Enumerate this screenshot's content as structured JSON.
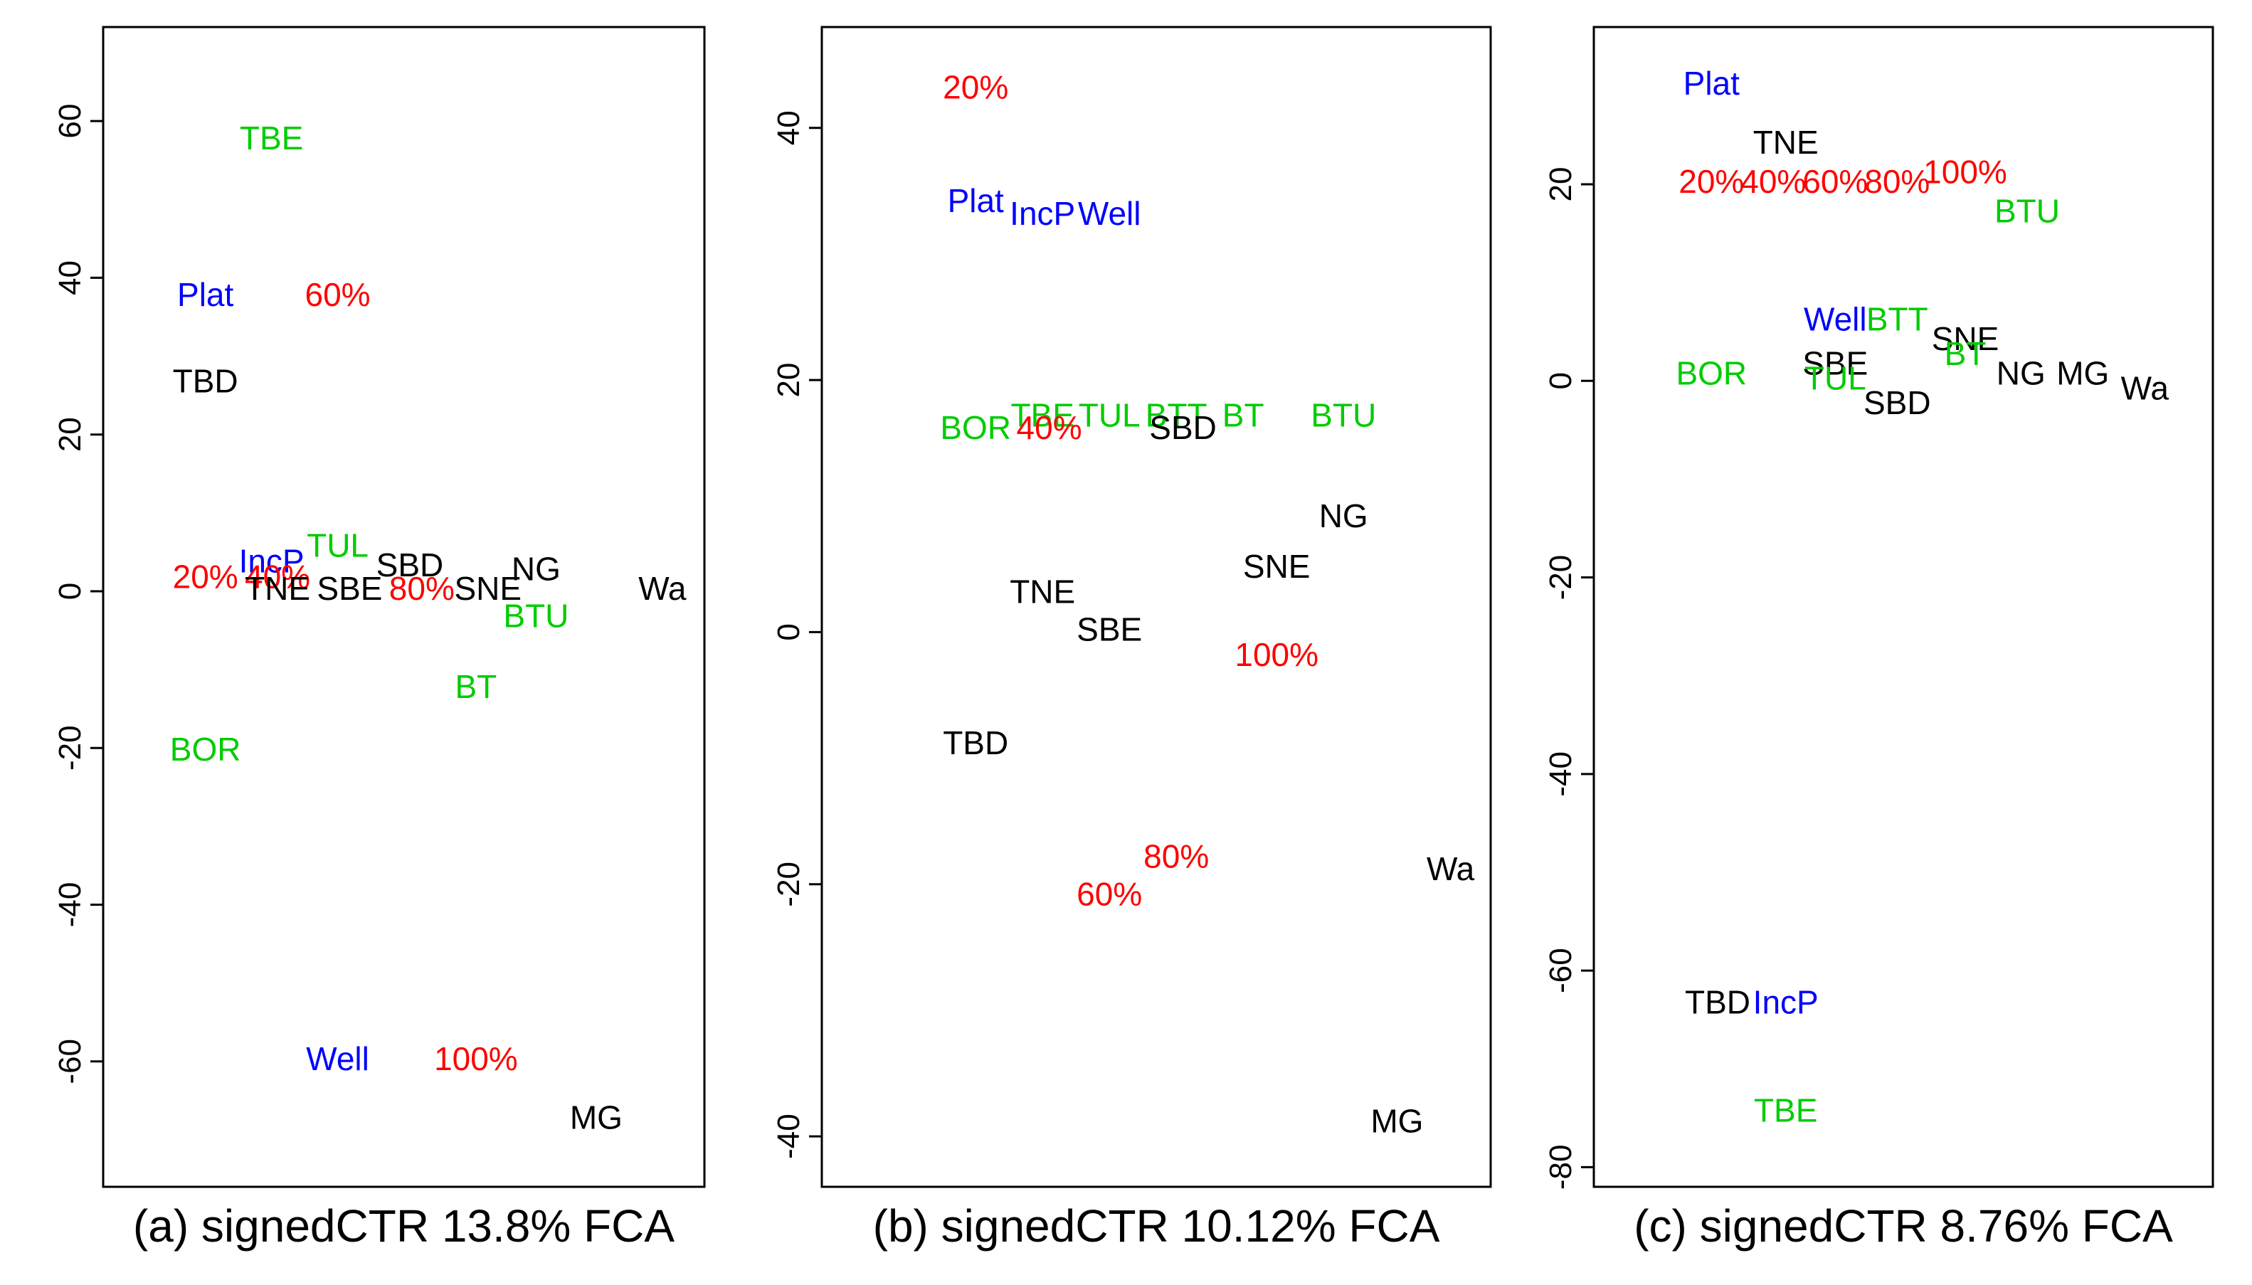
{
  "colors": {
    "red": "#ff0000",
    "blue": "#0000ff",
    "green": "#00cc00",
    "black": "#000000"
  },
  "chart_data": [
    {
      "type": "scatter",
      "title": "(a) signedCTR 13.8% FCA",
      "ylim": [
        -76,
        72
      ],
      "y_ticks": [
        60,
        40,
        20,
        0,
        -20,
        -40,
        -60
      ],
      "y_tick_labels": [
        "60",
        "40",
        "20",
        "0",
        "-20",
        "-40",
        "-60"
      ],
      "xlim": [
        0,
        10
      ],
      "points": [
        {
          "label": "TBE",
          "x": 2.8,
          "y": 57.5,
          "color": "green"
        },
        {
          "label": "Plat",
          "x": 1.7,
          "y": 37.5,
          "color": "blue"
        },
        {
          "label": "60%",
          "x": 3.9,
          "y": 37.5,
          "color": "red"
        },
        {
          "label": "TBD",
          "x": 1.7,
          "y": 26.5,
          "color": "black"
        },
        {
          "label": "TUL",
          "x": 3.9,
          "y": 5.5,
          "color": "green"
        },
        {
          "label": "IncP",
          "x": 2.8,
          "y": 3.5,
          "color": "blue"
        },
        {
          "label": "SBD",
          "x": 5.1,
          "y": 3.0,
          "color": "black"
        },
        {
          "label": "NG",
          "x": 7.2,
          "y": 2.5,
          "color": "black"
        },
        {
          "label": "20%",
          "x": 1.7,
          "y": 1.5,
          "color": "red"
        },
        {
          "label": "40%",
          "x": 2.9,
          "y": 1.5,
          "color": "red"
        },
        {
          "label": "TNE",
          "x": 2.9,
          "y": 0.0,
          "color": "black"
        },
        {
          "label": "SBE",
          "x": 4.1,
          "y": 0.0,
          "color": "black"
        },
        {
          "label": "80%",
          "x": 5.3,
          "y": 0.0,
          "color": "red"
        },
        {
          "label": "SNE",
          "x": 6.4,
          "y": 0.0,
          "color": "black"
        },
        {
          "label": "Wa",
          "x": 9.3,
          "y": 0.0,
          "color": "black"
        },
        {
          "label": "BTU",
          "x": 7.2,
          "y": -3.5,
          "color": "green"
        },
        {
          "label": "BT",
          "x": 6.2,
          "y": -12.5,
          "color": "green"
        },
        {
          "label": "BOR",
          "x": 1.7,
          "y": -20.5,
          "color": "green"
        },
        {
          "label": "Well",
          "x": 3.9,
          "y": -60.0,
          "color": "blue"
        },
        {
          "label": "100%",
          "x": 6.2,
          "y": -60.0,
          "color": "red"
        },
        {
          "label": "MG",
          "x": 8.2,
          "y": -67.5,
          "color": "black"
        }
      ]
    },
    {
      "type": "scatter",
      "title": "(b) signedCTR 10.12% FCA",
      "ylim": [
        -44,
        48
      ],
      "y_ticks": [
        40,
        20,
        0,
        -20,
        -40
      ],
      "y_tick_labels": [
        "40",
        "20",
        "0",
        "-20",
        "-40"
      ],
      "xlim": [
        0,
        10
      ],
      "points": [
        {
          "label": "20%",
          "x": 2.3,
          "y": 43.0,
          "color": "red"
        },
        {
          "label": "Plat",
          "x": 2.3,
          "y": 34.0,
          "color": "blue"
        },
        {
          "label": "IncP",
          "x": 3.3,
          "y": 33.0,
          "color": "blue"
        },
        {
          "label": "Well",
          "x": 4.3,
          "y": 33.0,
          "color": "blue"
        },
        {
          "label": "TBE",
          "x": 3.3,
          "y": 17.0,
          "color": "green"
        },
        {
          "label": "TUL",
          "x": 4.3,
          "y": 17.0,
          "color": "green"
        },
        {
          "label": "BTT",
          "x": 5.3,
          "y": 17.0,
          "color": "green"
        },
        {
          "label": "BT",
          "x": 6.3,
          "y": 17.0,
          "color": "green"
        },
        {
          "label": "BTU",
          "x": 7.8,
          "y": 17.0,
          "color": "green"
        },
        {
          "label": "BOR",
          "x": 2.3,
          "y": 16.0,
          "color": "green"
        },
        {
          "label": "40%",
          "x": 3.4,
          "y": 16.0,
          "color": "red"
        },
        {
          "label": "SBD",
          "x": 5.4,
          "y": 16.0,
          "color": "black"
        },
        {
          "label": "NG",
          "x": 7.8,
          "y": 9.0,
          "color": "black"
        },
        {
          "label": "SNE",
          "x": 6.8,
          "y": 5.0,
          "color": "black"
        },
        {
          "label": "TNE",
          "x": 3.3,
          "y": 3.0,
          "color": "black"
        },
        {
          "label": "SBE",
          "x": 4.3,
          "y": 0.0,
          "color": "black"
        },
        {
          "label": "100%",
          "x": 6.8,
          "y": -2.0,
          "color": "red"
        },
        {
          "label": "TBD",
          "x": 2.3,
          "y": -9.0,
          "color": "black"
        },
        {
          "label": "80%",
          "x": 5.3,
          "y": -18.0,
          "color": "red"
        },
        {
          "label": "Wa",
          "x": 9.4,
          "y": -19.0,
          "color": "black"
        },
        {
          "label": "60%",
          "x": 4.3,
          "y": -21.0,
          "color": "red"
        },
        {
          "label": "MG",
          "x": 8.6,
          "y": -39.0,
          "color": "black"
        }
      ]
    },
    {
      "type": "scatter",
      "title": "(c) signedCTR 8.76% FCA",
      "ylim": [
        -82,
        36
      ],
      "y_ticks": [
        20,
        0,
        -20,
        -40,
        -60,
        -80
      ],
      "y_tick_labels": [
        "20",
        "0",
        "-20",
        "-40",
        "-60",
        "-80"
      ],
      "xlim": [
        0,
        10
      ],
      "points": [
        {
          "label": "Plat",
          "x": 1.9,
          "y": 30.0,
          "color": "blue"
        },
        {
          "label": "TNE",
          "x": 3.1,
          "y": 24.0,
          "color": "black"
        },
        {
          "label": "20%",
          "x": 1.9,
          "y": 20.0,
          "color": "red"
        },
        {
          "label": "40%",
          "x": 2.9,
          "y": 20.0,
          "color": "red"
        },
        {
          "label": "60%",
          "x": 3.9,
          "y": 20.0,
          "color": "red"
        },
        {
          "label": "80%",
          "x": 4.9,
          "y": 20.0,
          "color": "red"
        },
        {
          "label": "100%",
          "x": 6.0,
          "y": 21.0,
          "color": "red"
        },
        {
          "label": "BTU",
          "x": 7.0,
          "y": 17.0,
          "color": "green"
        },
        {
          "label": "Well",
          "x": 3.9,
          "y": 6.0,
          "color": "blue"
        },
        {
          "label": "BTT",
          "x": 4.9,
          "y": 6.0,
          "color": "green"
        },
        {
          "label": "SNE",
          "x": 6.0,
          "y": 4.0,
          "color": "black"
        },
        {
          "label": "BT",
          "x": 6.0,
          "y": 2.5,
          "color": "green"
        },
        {
          "label": "SBE",
          "x": 3.9,
          "y": 1.5,
          "color": "black"
        },
        {
          "label": "BOR",
          "x": 1.9,
          "y": 0.5,
          "color": "green"
        },
        {
          "label": "TUL",
          "x": 3.9,
          "y": 0.0,
          "color": "green"
        },
        {
          "label": "NG",
          "x": 6.9,
          "y": 0.5,
          "color": "black"
        },
        {
          "label": "MG",
          "x": 7.9,
          "y": 0.5,
          "color": "black"
        },
        {
          "label": "Wa",
          "x": 8.9,
          "y": -1.0,
          "color": "black"
        },
        {
          "label": "SBD",
          "x": 4.9,
          "y": -2.5,
          "color": "black"
        },
        {
          "label": "TBD",
          "x": 2.0,
          "y": -63.5,
          "color": "black"
        },
        {
          "label": "IncP",
          "x": 3.1,
          "y": -63.5,
          "color": "blue"
        },
        {
          "label": "TBE",
          "x": 3.1,
          "y": -74.5,
          "color": "green"
        }
      ]
    }
  ]
}
